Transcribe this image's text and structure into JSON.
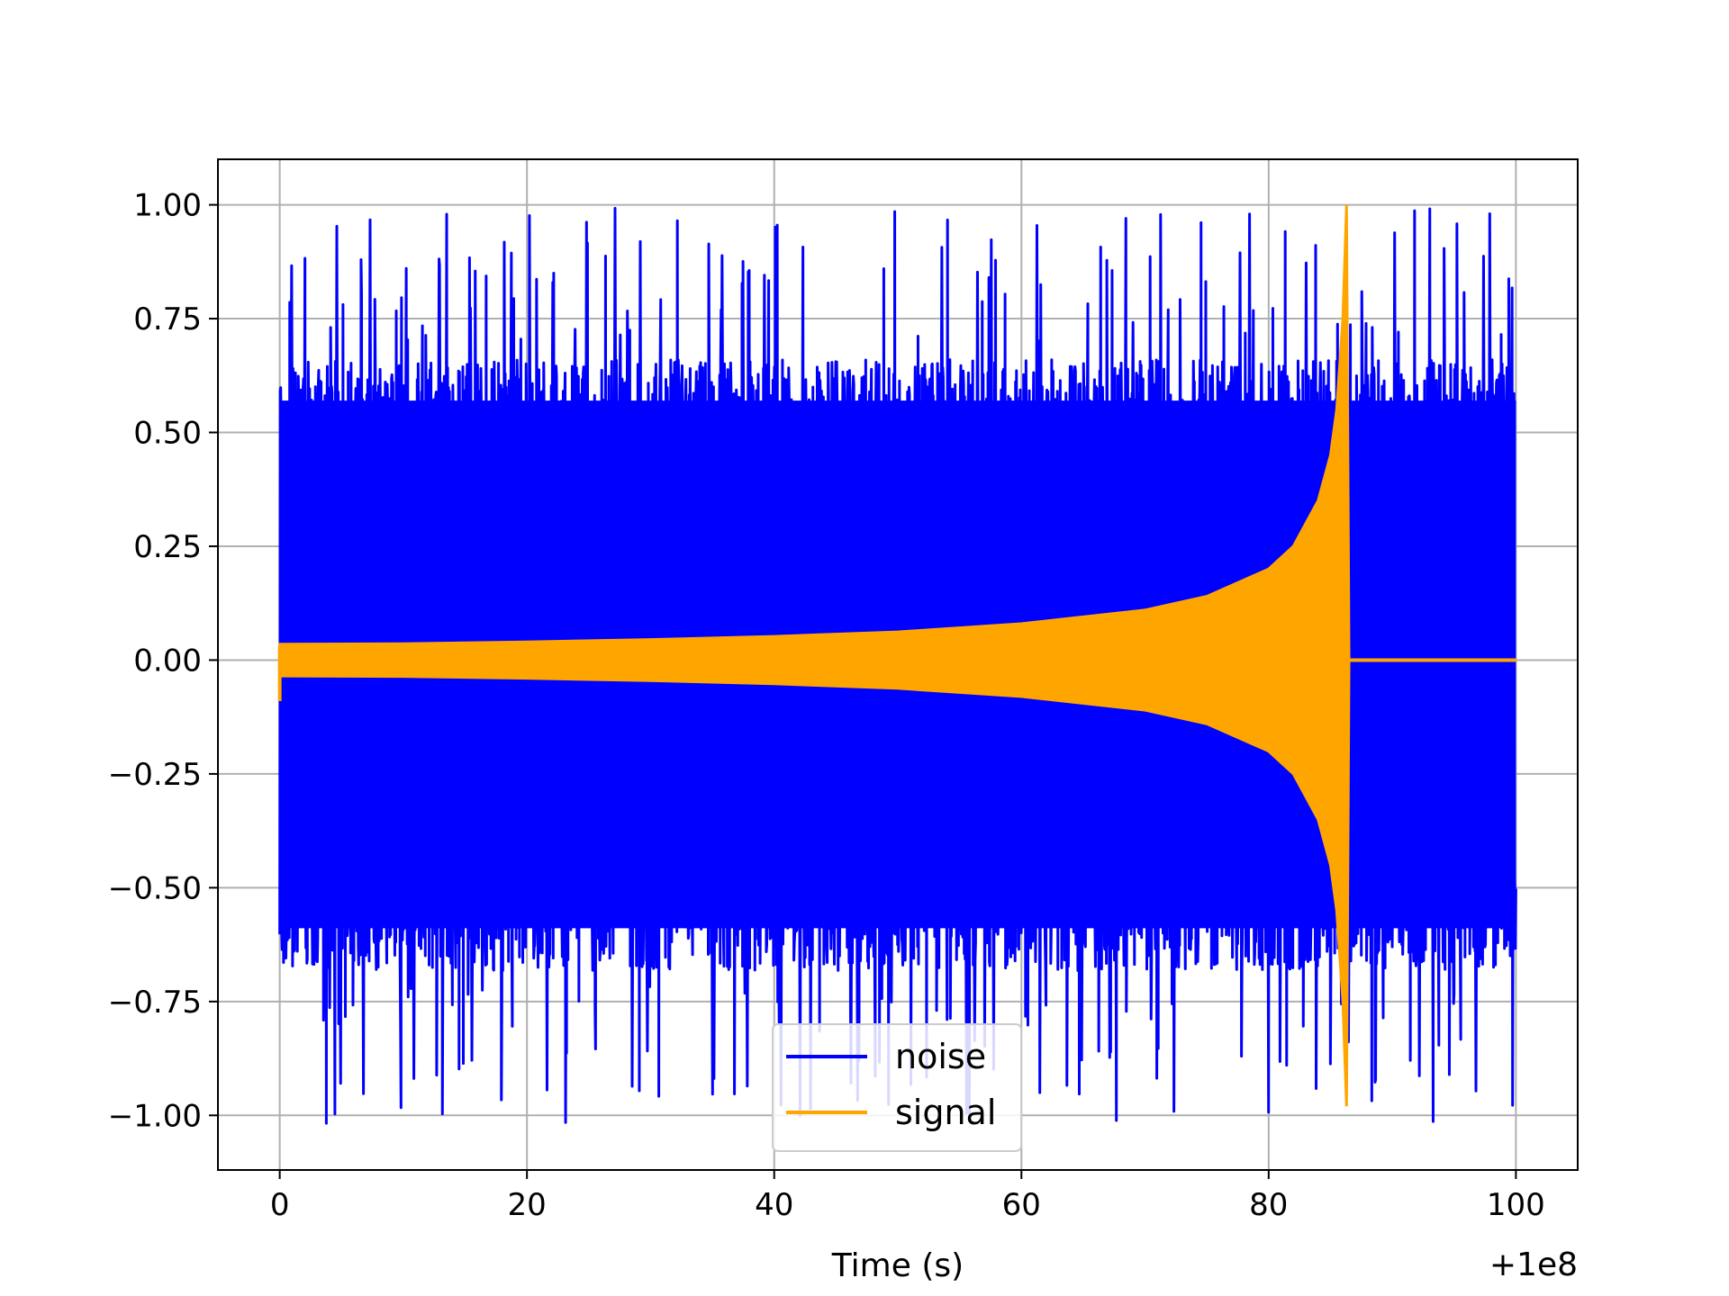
{
  "chart_data": {
    "type": "line",
    "title": "",
    "xlabel": "Time (s)",
    "ylabel": "",
    "x_offset_label": "+1e8",
    "xlim": [
      -5,
      105
    ],
    "ylim": [
      -1.12,
      1.1
    ],
    "x_ticks": [
      0,
      20,
      40,
      60,
      80,
      100
    ],
    "x_tick_labels": [
      "0",
      "20",
      "40",
      "60",
      "80",
      "100"
    ],
    "y_ticks": [
      1.0,
      0.75,
      0.5,
      0.25,
      0.0,
      -0.25,
      -0.5,
      -0.75,
      -1.0
    ],
    "y_tick_labels": [
      "1.00",
      "0.75",
      "0.50",
      "0.25",
      "0.00",
      "−0.25",
      "−0.50",
      "−0.75",
      "−1.00"
    ],
    "grid": true,
    "legend_position": "lower-center",
    "series": [
      {
        "name": "noise",
        "color": "#0000ff",
        "x_range": [
          0,
          100
        ],
        "core_amplitude": [
          -0.62,
          0.6
        ],
        "peak_range": [
          -1.02,
          1.0
        ]
      },
      {
        "name": "signal",
        "color": "#ffa500",
        "x_range": [
          0,
          100
        ],
        "envelope": {
          "x": [
            0,
            10,
            20,
            30,
            40,
            50,
            60,
            70,
            75,
            80,
            82,
            84,
            85,
            85.5,
            86,
            86.3,
            86.5,
            100
          ],
          "upper": [
            0.035,
            0.036,
            0.04,
            0.045,
            0.052,
            0.062,
            0.08,
            0.11,
            0.14,
            0.2,
            0.25,
            0.35,
            0.45,
            0.55,
            0.75,
            1.0,
            0.0,
            0.0
          ],
          "lower": [
            -0.035,
            -0.036,
            -0.04,
            -0.045,
            -0.052,
            -0.062,
            -0.08,
            -0.11,
            -0.14,
            -0.2,
            -0.25,
            -0.35,
            -0.45,
            -0.55,
            -0.75,
            -0.98,
            0.0,
            0.0
          ]
        }
      }
    ]
  }
}
